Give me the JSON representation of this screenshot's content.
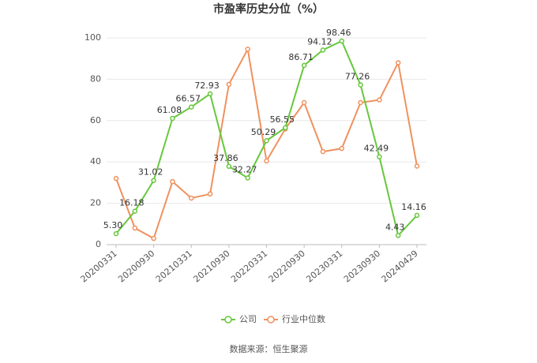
{
  "chart_data": {
    "type": "line",
    "title": "市盈率历史分位（%）",
    "source": "数据来源：恒生聚源",
    "categories": [
      "20200331",
      null,
      "20200930",
      null,
      "20210331",
      null,
      "20210930",
      null,
      "20220331",
      null,
      "20220930",
      null,
      "20230331",
      null,
      "20230930",
      null,
      "20240429"
    ],
    "series": [
      {
        "name": "公司",
        "color": "#66c83c",
        "values": [
          5.3,
          16.18,
          31.02,
          61.08,
          66.57,
          72.93,
          37.86,
          32.27,
          50.29,
          56.55,
          86.71,
          94.12,
          98.46,
          77.26,
          42.49,
          4.43,
          14.16
        ],
        "value_labels": [
          "5.30",
          "16.18",
          "31.02",
          "61.08",
          "66.57",
          "72.93",
          "37.86",
          "32.27",
          "50.29",
          "56.55",
          "86.71",
          "94.12",
          "98.46",
          "77.26",
          "42.49",
          "4.43",
          "14.16"
        ]
      },
      {
        "name": "行业中位数",
        "color": "#f0915e",
        "values": [
          32,
          8,
          3,
          30.5,
          22.5,
          24.5,
          77.5,
          94.5,
          40.5,
          56,
          68.7,
          45,
          46.5,
          68.7,
          70,
          88,
          38
        ]
      }
    ],
    "ylim": [
      0,
      100
    ],
    "yticks": [
      0,
      20,
      40,
      60,
      80,
      100
    ],
    "grid": true,
    "legend": "bottom"
  }
}
